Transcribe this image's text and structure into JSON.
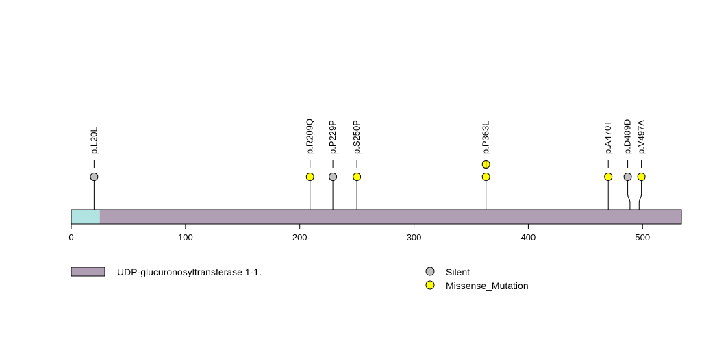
{
  "chart_data": {
    "type": "lollipop",
    "protein_length": 534,
    "xlim": [
      0,
      534
    ],
    "x_ticks": [
      0,
      100,
      200,
      300,
      400,
      500
    ],
    "regions": [
      {
        "start": 0,
        "end": 25,
        "color": "#b2e3e3",
        "name": ""
      },
      {
        "start": 25,
        "end": 534,
        "color": "#b09fb4",
        "name": "UDP-glucuronosyltransferase 1-1."
      }
    ],
    "mutation_types": [
      {
        "type": "Silent",
        "color": "#c0c0c0"
      },
      {
        "type": "Missense_Mutation",
        "color": "#ffff00"
      }
    ],
    "mutations": [
      {
        "label": "p.L20L",
        "position": 20,
        "draw_position": 20,
        "type": "Silent",
        "count": 1
      },
      {
        "label": "p.R209Q",
        "position": 209,
        "draw_position": 209,
        "type": "Missense_Mutation",
        "count": 1
      },
      {
        "label": "p.P229P",
        "position": 229,
        "draw_position": 229,
        "type": "Silent",
        "count": 1
      },
      {
        "label": "p.S250P",
        "position": 250,
        "draw_position": 250,
        "type": "Missense_Mutation",
        "count": 1
      },
      {
        "label": "p.P363L",
        "position": 363,
        "draw_position": 363,
        "type": "Missense_Mutation",
        "count": 2
      },
      {
        "label": "p.A470T",
        "position": 470,
        "draw_position": 470,
        "type": "Missense_Mutation",
        "count": 1
      },
      {
        "label": "p.D489D",
        "position": 489,
        "draw_position": 487,
        "type": "Silent",
        "count": 1
      },
      {
        "label": "p.V497A",
        "position": 497,
        "draw_position": 499,
        "type": "Missense_Mutation",
        "count": 1
      }
    ],
    "legend": {
      "domains": [
        "UDP-glucuronosyltransferase 1-1."
      ],
      "types": [
        "Silent",
        "Missense_Mutation"
      ]
    }
  }
}
